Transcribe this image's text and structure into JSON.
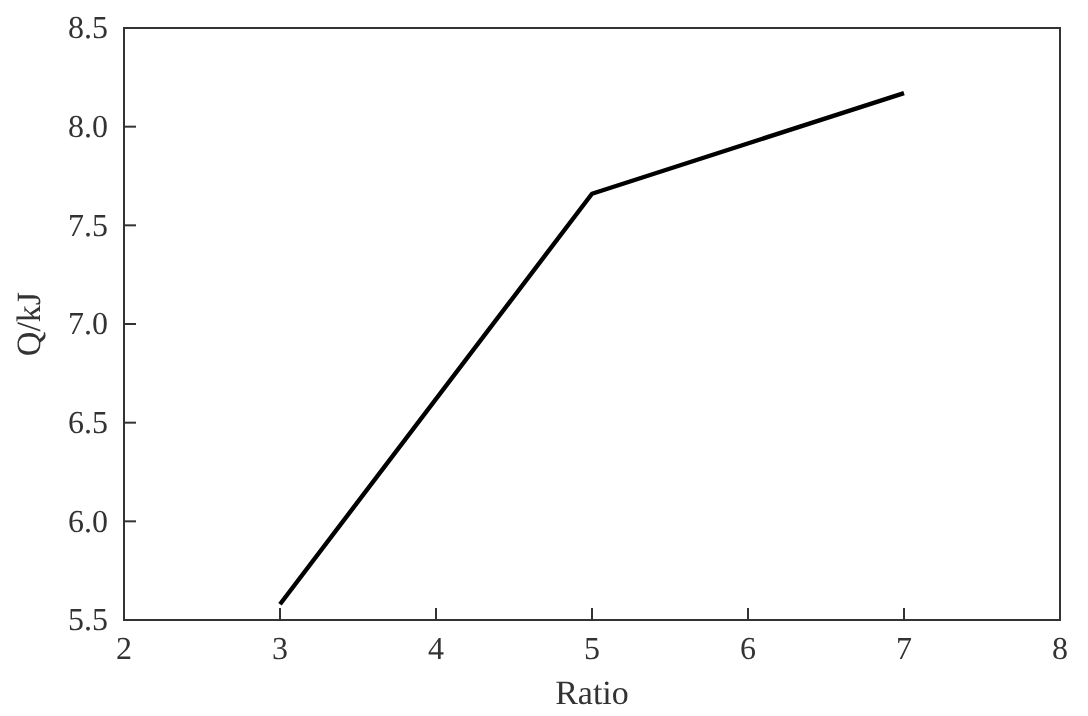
{
  "chart_data": {
    "type": "line",
    "xlabel": "Ratio",
    "ylabel": "Q/kJ",
    "x": [
      3,
      5,
      7
    ],
    "series": [
      {
        "color": "#000000",
        "values": [
          5.58,
          7.66,
          8.17
        ]
      }
    ],
    "xlim": [
      2,
      8
    ],
    "xticks": [
      2,
      3,
      4,
      5,
      6,
      7,
      8
    ],
    "ylim": [
      5.5,
      8.5
    ],
    "yticks": [
      5.5,
      {
        "value": 6,
        "label": "6.0"
      },
      6.5,
      {
        "value": 7,
        "label": "7.0"
      },
      7.5,
      {
        "value": 8,
        "label": "8.0"
      },
      8.5
    ],
    "grid": false,
    "marker": "none",
    "line_style": "solid"
  }
}
